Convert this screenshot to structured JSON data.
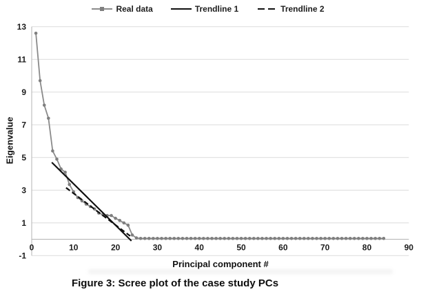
{
  "legend": {
    "items": [
      {
        "label": "Real data"
      },
      {
        "label": "Trendline 1"
      },
      {
        "label": "Trendline 2"
      }
    ]
  },
  "axes": {
    "y_title": "Eigenvalue",
    "x_title": "Principal component #"
  },
  "caption": "Figure 3: Scree plot of the case study PCs",
  "colors": {
    "grid": "#dcdcdc",
    "axis": "#b3b3b3",
    "series_gray_line": "#8a8a8a",
    "series_gray_marker": "#7f7f7f",
    "trendline_black": "#0f0f0f",
    "tick_text": "#1c1c1c"
  },
  "chart_data": {
    "type": "line",
    "title": "",
    "xlabel": "Principal component #",
    "ylabel": "Eigenvalue",
    "xlim": [
      0,
      90
    ],
    "ylim": [
      -1,
      13
    ],
    "x_ticks": [
      0,
      10,
      20,
      30,
      40,
      50,
      60,
      70,
      80,
      90
    ],
    "y_ticks": [
      -1,
      1,
      3,
      5,
      7,
      9,
      11,
      13
    ],
    "grid": "horizontal-only",
    "legend_position": "top-center",
    "series": [
      {
        "name": "Real data",
        "kind": "line+markers",
        "color": "#8a8a8a",
        "marker_color": "#7f7f7f",
        "x_start": 1,
        "values": [
          12.6,
          9.7,
          8.2,
          7.4,
          5.4,
          4.9,
          4.3,
          4.1,
          3.35,
          2.9,
          2.55,
          2.35,
          2.15,
          2.0,
          1.85,
          1.6,
          1.5,
          1.45,
          1.45,
          1.28,
          1.15,
          1.0,
          0.86,
          0.26,
          0.08,
          0.05,
          0.05,
          0.05,
          0.05,
          0.05,
          0.05,
          0.05,
          0.05,
          0.05,
          0.05,
          0.05,
          0.05,
          0.05,
          0.05,
          0.05,
          0.05,
          0.05,
          0.05,
          0.05,
          0.05,
          0.05,
          0.05,
          0.05,
          0.05,
          0.05,
          0.05,
          0.05,
          0.05,
          0.05,
          0.05,
          0.05,
          0.05,
          0.05,
          0.05,
          0.05,
          0.05,
          0.05,
          0.05,
          0.05,
          0.05,
          0.05,
          0.05,
          0.05,
          0.05,
          0.05,
          0.05,
          0.05,
          0.05,
          0.05,
          0.05,
          0.05,
          0.05,
          0.05,
          0.05,
          0.05,
          0.05,
          0.05,
          0.05,
          0.05
        ]
      },
      {
        "name": "Trendline 1",
        "kind": "line",
        "style": "solid",
        "color": "#0f0f0f",
        "points": [
          [
            4.8,
            4.7
          ],
          [
            23.8,
            -0.1
          ]
        ]
      },
      {
        "name": "Trendline 2",
        "kind": "line",
        "style": "dashed",
        "color": "#0f0f0f",
        "points": [
          [
            8.2,
            3.15
          ],
          [
            23.5,
            0.2
          ]
        ]
      }
    ]
  }
}
